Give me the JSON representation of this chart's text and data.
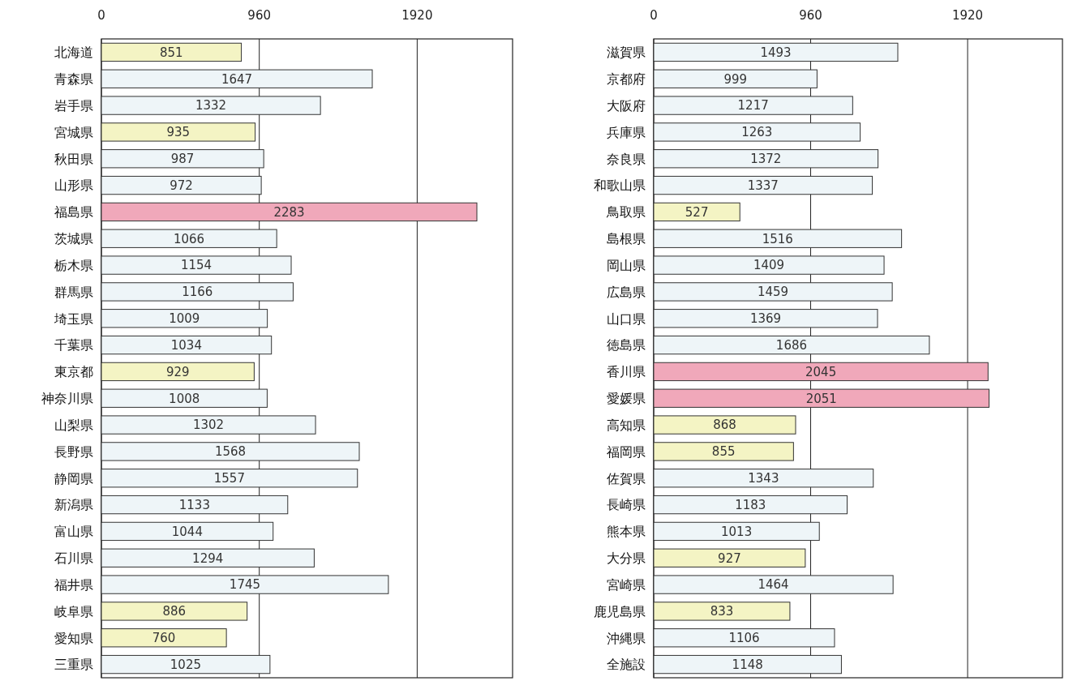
{
  "chart_data": [
    {
      "type": "bar",
      "orientation": "horizontal",
      "grid": "x",
      "data_labels": true,
      "xlim": [
        0,
        2500
      ],
      "xticks": [
        0,
        960,
        1920
      ],
      "categories": [
        "北海道",
        "青森県",
        "岩手県",
        "宮城県",
        "秋田県",
        "山形県",
        "福島県",
        "茨城県",
        "栃木県",
        "群馬県",
        "埼玉県",
        "千葉県",
        "東京都",
        "神奈川県",
        "山梨県",
        "長野県",
        "静岡県",
        "新潟県",
        "富山県",
        "石川県",
        "福井県",
        "岐阜県",
        "愛知県",
        "三重県"
      ],
      "values": [
        851,
        1647,
        1332,
        935,
        987,
        972,
        2283,
        1066,
        1154,
        1166,
        1009,
        1034,
        929,
        1008,
        1302,
        1568,
        1557,
        1133,
        1044,
        1294,
        1745,
        886,
        760,
        1025
      ],
      "colors": [
        "#f4f4c4",
        "#eef5f8",
        "#eef5f8",
        "#f4f4c4",
        "#eef5f8",
        "#eef5f8",
        "#f0a8ba",
        "#eef5f8",
        "#eef5f8",
        "#eef5f8",
        "#eef5f8",
        "#eef5f8",
        "#f4f4c4",
        "#eef5f8",
        "#eef5f8",
        "#eef5f8",
        "#eef5f8",
        "#eef5f8",
        "#eef5f8",
        "#eef5f8",
        "#eef5f8",
        "#f4f4c4",
        "#f4f4c4",
        "#eef5f8"
      ]
    },
    {
      "type": "bar",
      "orientation": "horizontal",
      "grid": "x",
      "data_labels": true,
      "xlim": [
        0,
        2500
      ],
      "xticks": [
        0,
        960,
        1920
      ],
      "categories": [
        "滋賀県",
        "京都府",
        "大阪府",
        "兵庫県",
        "奈良県",
        "和歌山県",
        "鳥取県",
        "島根県",
        "岡山県",
        "広島県",
        "山口県",
        "徳島県",
        "香川県",
        "愛媛県",
        "高知県",
        "福岡県",
        "佐賀県",
        "長崎県",
        "熊本県",
        "大分県",
        "宮崎県",
        "鹿児島県",
        "沖縄県",
        "全施設"
      ],
      "values": [
        1493,
        999,
        1217,
        1263,
        1372,
        1337,
        527,
        1516,
        1409,
        1459,
        1369,
        1686,
        2045,
        2051,
        868,
        855,
        1343,
        1183,
        1013,
        927,
        1464,
        833,
        1106,
        1148
      ],
      "colors": [
        "#eef5f8",
        "#eef5f8",
        "#eef5f8",
        "#eef5f8",
        "#eef5f8",
        "#eef5f8",
        "#f4f4c4",
        "#eef5f8",
        "#eef5f8",
        "#eef5f8",
        "#eef5f8",
        "#eef5f8",
        "#f0a8ba",
        "#f0a8ba",
        "#f4f4c4",
        "#f4f4c4",
        "#eef5f8",
        "#eef5f8",
        "#eef5f8",
        "#f4f4c4",
        "#eef5f8",
        "#f4f4c4",
        "#eef5f8",
        "#eef5f8"
      ]
    }
  ]
}
